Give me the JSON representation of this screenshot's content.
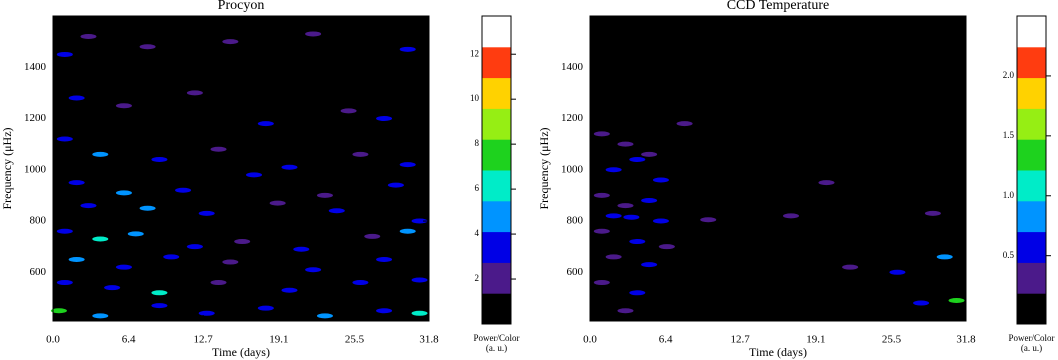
{
  "chart_data": [
    {
      "type": "spectrogram",
      "title": "Procyon",
      "xlabel": "Time (days)",
      "ylabel": "Frequency (μHz)",
      "xlim": [
        0,
        31.8
      ],
      "xticks": [
        {
          "value": 0,
          "label": "0.0"
        },
        6.4,
        12.7,
        19.1,
        25.5,
        31.8
      ],
      "ylim": [
        410,
        1600
      ],
      "yticks": [
        600,
        800,
        1000,
        1200,
        1400
      ],
      "colorbar_label": "Power/Color",
      "colorbar_units": "(a. u.)",
      "clim": [
        0,
        13.7
      ],
      "cticks": [
        2,
        4,
        6,
        8,
        10,
        12
      ],
      "colors": [
        "#000000",
        "#4b1a8a",
        "#0000e6",
        "#0094ff",
        "#00ecc8",
        "#1ed21e",
        "#96ee14",
        "#ffd200",
        "#ff3c10",
        "#ffffff"
      ],
      "series": [
        {
          "name": "Procyon",
          "x": [
            1.0,
            3,
            8,
            15,
            22,
            30,
            2,
            6,
            12,
            18,
            25,
            28,
            1,
            4,
            9,
            14,
            20,
            26,
            30,
            2,
            6,
            11,
            17,
            23,
            29,
            3,
            8,
            13,
            19,
            24,
            31,
            1,
            4,
            7,
            12,
            16,
            21,
            27,
            30,
            2,
            6,
            10,
            15,
            22,
            28,
            1,
            5,
            9,
            14,
            20,
            26,
            31,
            0.5,
            4,
            9,
            13,
            18,
            23,
            28,
            31
          ],
          "y": [
            1450,
            1520,
            1480,
            1500,
            1530,
            1470,
            1280,
            1250,
            1300,
            1180,
            1230,
            1200,
            1120,
            1060,
            1040,
            1080,
            1010,
            1060,
            1020,
            950,
            910,
            920,
            980,
            900,
            940,
            860,
            850,
            830,
            870,
            840,
            800,
            760,
            730,
            750,
            700,
            720,
            690,
            740,
            760,
            650,
            620,
            660,
            640,
            610,
            650,
            560,
            540,
            520,
            560,
            530,
            560,
            570,
            450,
            430,
            470,
            440,
            460,
            430,
            450,
            440
          ],
          "values": [
            3,
            2,
            2,
            2,
            2,
            4,
            3,
            2,
            2,
            3,
            2,
            4,
            4,
            5,
            3,
            2,
            3,
            2,
            3,
            4,
            5,
            3,
            4,
            2,
            3,
            4,
            5,
            3,
            2,
            3,
            3,
            4,
            6,
            5,
            3,
            2,
            3,
            2,
            5,
            5,
            4,
            3,
            2,
            4,
            3,
            4,
            3,
            6,
            2,
            3,
            4,
            3,
            7,
            5,
            3,
            4,
            3,
            5,
            4,
            6
          ]
        }
      ]
    },
    {
      "type": "spectrogram",
      "title": "CCD Temperature",
      "xlabel": "Time (days)",
      "ylabel": "Frequency (μHz)",
      "xlim": [
        0,
        31.8
      ],
      "xticks": [
        {
          "value": 0,
          "label": "0.0"
        },
        6.4,
        12.7,
        19.1,
        25.5,
        31.8
      ],
      "ylim": [
        410,
        1600
      ],
      "yticks": [
        600,
        800,
        1000,
        1200,
        1400
      ],
      "colorbar_label": "Power/Color",
      "colorbar_units": "(a. u.)",
      "clim": [
        -0.07,
        2.5
      ],
      "cticks": [
        0.5,
        {
          "value": 1,
          "label": "1.0"
        },
        1.5,
        {
          "value": 2,
          "label": "2.0"
        }
      ],
      "colors": [
        "#000000",
        "#4b1a8a",
        "#0000e6",
        "#0094ff",
        "#00ecc8",
        "#1ed21e",
        "#96ee14",
        "#ffd200",
        "#ff3c10",
        "#ffffff"
      ],
      "series": [
        {
          "name": "CCD Temperature",
          "x": [
            1,
            3,
            5,
            2,
            4,
            6,
            1,
            3,
            5,
            2,
            3.5,
            6,
            1,
            4,
            6.5,
            2,
            5,
            1,
            4,
            3,
            10,
            8,
            20,
            22,
            26,
            30,
            28,
            31,
            17,
            29
          ],
          "y": [
            1140,
            1100,
            1060,
            1000,
            1040,
            960,
            900,
            860,
            880,
            820,
            815,
            800,
            760,
            720,
            700,
            660,
            630,
            560,
            520,
            450,
            805,
            1180,
            950,
            620,
            600,
            660,
            480,
            490,
            820,
            830
          ],
          "values": [
            0.3,
            0.3,
            0.4,
            0.5,
            0.7,
            0.5,
            0.3,
            0.4,
            0.6,
            0.5,
            0.7,
            0.5,
            0.4,
            0.6,
            0.4,
            0.4,
            0.5,
            0.3,
            0.5,
            0.3,
            0.4,
            0.3,
            0.3,
            0.4,
            0.5,
            0.8,
            0.5,
            1.4,
            0.3,
            0.4
          ]
        }
      ]
    }
  ]
}
